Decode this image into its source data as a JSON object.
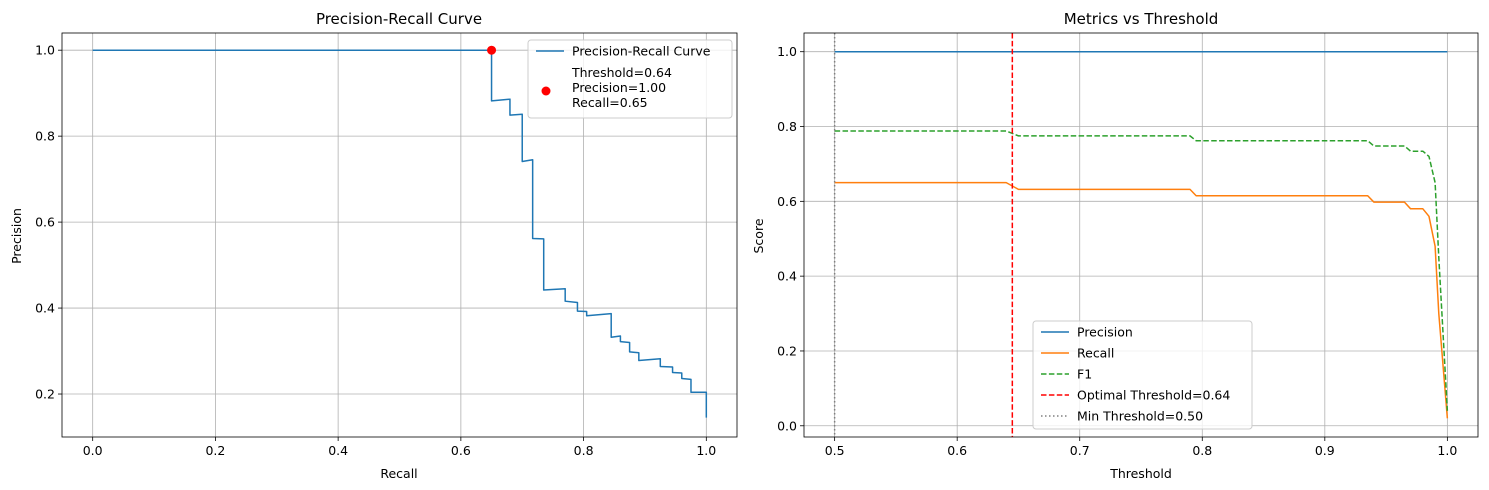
{
  "chart_data": [
    {
      "type": "line",
      "title": "Precision-Recall Curve",
      "xlabel": "Recall",
      "ylabel": "Precision",
      "xlim": [
        -0.05,
        1.05
      ],
      "ylim": [
        0.1,
        1.04
      ],
      "xticks": [
        "0.0",
        "0.2",
        "0.4",
        "0.6",
        "0.8",
        "1.0"
      ],
      "xtick_values": [
        0.0,
        0.2,
        0.4,
        0.6,
        0.8,
        1.0
      ],
      "yticks": [
        "0.2",
        "0.4",
        "0.6",
        "0.8",
        "1.0"
      ],
      "ytick_values": [
        0.2,
        0.4,
        0.6,
        0.8,
        1.0
      ],
      "grid": true,
      "legend_position": "upper right",
      "series": [
        {
          "name": "Precision-Recall Curve",
          "color": "#1f77b4",
          "style": "solid",
          "x": [
            0.0,
            0.65,
            0.65,
            0.68,
            0.68,
            0.7,
            0.7,
            0.717,
            0.717,
            0.735,
            0.735,
            0.77,
            0.77,
            0.79,
            0.79,
            0.805,
            0.805,
            0.845,
            0.845,
            0.86,
            0.86,
            0.875,
            0.875,
            0.89,
            0.89,
            0.925,
            0.925,
            0.945,
            0.945,
            0.96,
            0.96,
            0.975,
            0.975,
            1.0,
            1.0
          ],
          "y": [
            1.0,
            1.0,
            0.882,
            0.886,
            0.849,
            0.851,
            0.741,
            0.745,
            0.562,
            0.561,
            0.442,
            0.445,
            0.416,
            0.413,
            0.393,
            0.392,
            0.382,
            0.387,
            0.332,
            0.335,
            0.322,
            0.32,
            0.298,
            0.296,
            0.278,
            0.282,
            0.264,
            0.263,
            0.25,
            0.249,
            0.236,
            0.234,
            0.204,
            0.204,
            0.145
          ]
        }
      ],
      "highlight_point": {
        "name": "Threshold=0.64\nPrecision=1.00\nRecall=0.65",
        "label_lines": [
          "Threshold=0.64",
          "Precision=1.00",
          "Recall=0.65"
        ],
        "x": 0.65,
        "y": 1.0,
        "color": "#ff0000"
      }
    },
    {
      "type": "line",
      "title": "Metrics vs Threshold",
      "xlabel": "Threshold",
      "ylabel": "Score",
      "xlim": [
        0.475,
        1.025
      ],
      "ylim": [
        -0.03,
        1.05
      ],
      "xticks": [
        "0.5",
        "0.6",
        "0.7",
        "0.8",
        "0.9",
        "1.0"
      ],
      "xtick_values": [
        0.5,
        0.6,
        0.7,
        0.8,
        0.9,
        1.0
      ],
      "yticks": [
        "0.0",
        "0.2",
        "0.4",
        "0.6",
        "0.8",
        "1.0"
      ],
      "ytick_values": [
        0.0,
        0.2,
        0.4,
        0.6,
        0.8,
        1.0
      ],
      "grid": true,
      "legend_position": "lower center",
      "series": [
        {
          "name": "Precision",
          "color": "#1f77b4",
          "style": "solid",
          "x": [
            0.5,
            1.0
          ],
          "y": [
            1.0,
            1.0
          ]
        },
        {
          "name": "Recall",
          "color": "#ff7f0e",
          "style": "solid",
          "x": [
            0.5,
            0.64,
            0.65,
            0.79,
            0.795,
            0.935,
            0.94,
            0.965,
            0.97,
            0.98,
            0.985,
            0.99,
            0.993,
            1.0
          ],
          "y": [
            0.65,
            0.65,
            0.632,
            0.632,
            0.615,
            0.615,
            0.598,
            0.598,
            0.58,
            0.58,
            0.56,
            0.48,
            0.3,
            0.02
          ]
        },
        {
          "name": "F1",
          "color": "#2ca02c",
          "style": "dashed",
          "x": [
            0.5,
            0.64,
            0.65,
            0.79,
            0.795,
            0.935,
            0.94,
            0.965,
            0.97,
            0.98,
            0.985,
            0.99,
            0.993,
            1.0
          ],
          "y": [
            0.788,
            0.788,
            0.775,
            0.775,
            0.762,
            0.762,
            0.748,
            0.748,
            0.734,
            0.734,
            0.72,
            0.65,
            0.45,
            0.04
          ]
        },
        {
          "name": "Optimal Threshold=0.64",
          "color": "#ff0000",
          "style": "dashed",
          "vline": 0.645
        },
        {
          "name": "Min Threshold=0.50",
          "color": "#808080",
          "style": "dotted",
          "vline": 0.5
        }
      ]
    }
  ]
}
